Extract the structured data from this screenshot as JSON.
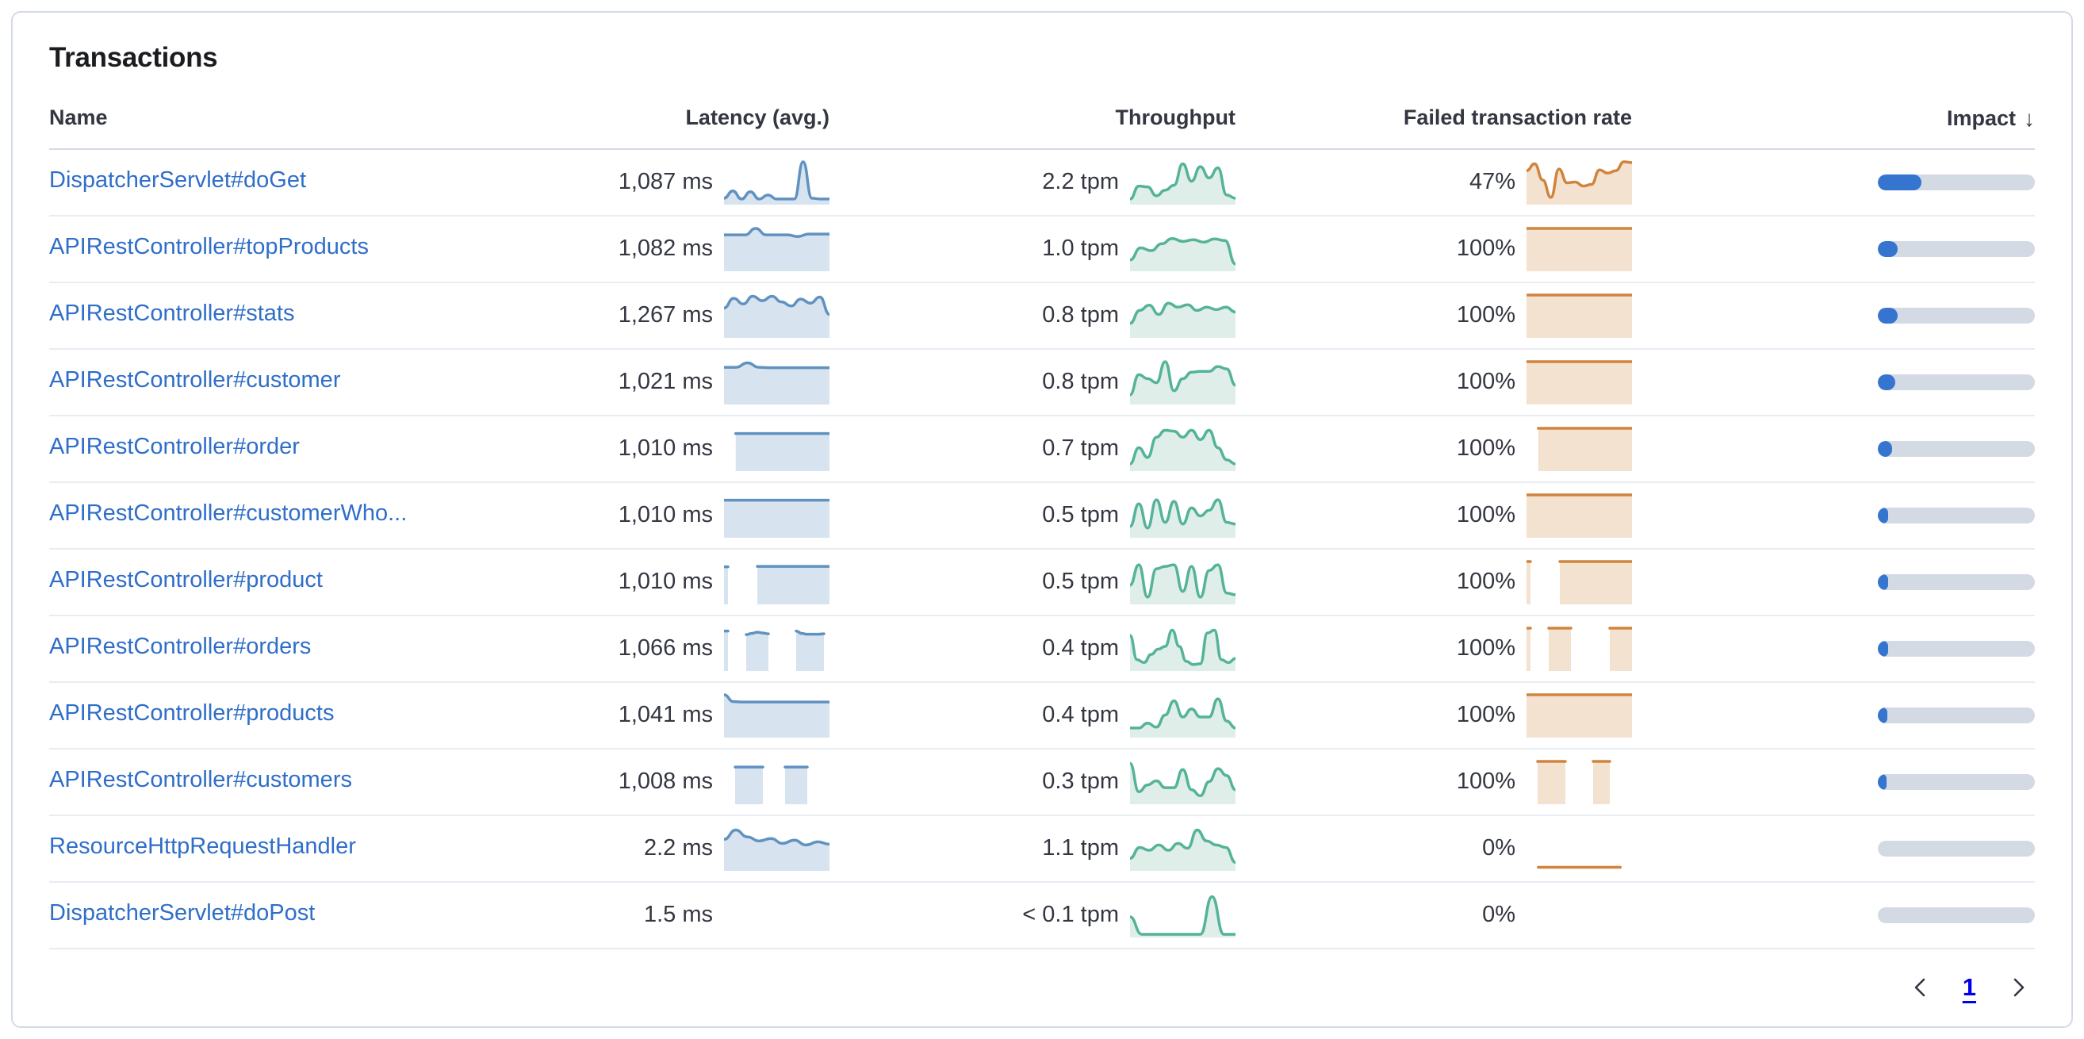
{
  "panel": {
    "title": "Transactions"
  },
  "colors": {
    "link": "#2f6ec9",
    "text": "#343741",
    "latency_line": "#6092c0",
    "latency_fill": "#d8e3f0",
    "throughput_line": "#54b399",
    "throughput_fill": "#dfeee8",
    "failed_line": "#d0843e",
    "failed_fill": "#f4e2d0",
    "impact_fill": "#3575d0",
    "impact_track": "#d4dae4"
  },
  "table": {
    "headers": {
      "name": "Name",
      "latency": "Latency (avg.)",
      "throughput": "Throughput",
      "failed": "Failed transaction rate",
      "impact": "Impact",
      "sort_arrow": "↓"
    },
    "rows": [
      {
        "name": "DispatcherServlet#doGet",
        "latency": "1,087 ms",
        "throughput": "2.2 tpm",
        "failed": "47%",
        "impact_pct": 28,
        "latency_spark": [
          0.1,
          0.28,
          0.08,
          0.26,
          0.08,
          0.18,
          0.08,
          0.08,
          0.08,
          1.0,
          0.1,
          0.08,
          0.08
        ],
        "throughput_spark": [
          0.08,
          0.4,
          0.38,
          0.16,
          0.3,
          0.42,
          0.95,
          0.52,
          0.88,
          0.6,
          0.85,
          0.18,
          0.1
        ],
        "failed_spark": [
          0.78,
          0.95,
          0.55,
          0.12,
          0.82,
          0.48,
          0.5,
          0.4,
          0.44,
          0.8,
          0.72,
          0.78,
          1.0,
          0.98
        ]
      },
      {
        "name": "APIRestController#topProducts",
        "latency": "1,082 ms",
        "throughput": "1.0 tpm",
        "failed": "100%",
        "impact_pct": 12.5,
        "latency_spark": [
          0.84,
          0.84,
          0.84,
          1.0,
          0.84,
          0.84,
          0.84,
          0.8,
          0.86,
          0.86,
          0.86
        ],
        "throughput_spark": [
          0.22,
          0.52,
          0.45,
          0.62,
          0.75,
          0.68,
          0.72,
          0.66,
          0.74,
          0.7,
          0.12
        ],
        "failed_spark": [
          1,
          1,
          1,
          1,
          1,
          1,
          1,
          1,
          1,
          1
        ]
      },
      {
        "name": "APIRestController#stats",
        "latency": "1,267 ms",
        "throughput": "0.8 tpm",
        "failed": "100%",
        "impact_pct": 12.5,
        "latency_spark": [
          0.68,
          0.92,
          0.78,
          0.97,
          0.86,
          0.97,
          0.83,
          0.73,
          0.9,
          0.8,
          0.95,
          0.52
        ],
        "throughput_spark": [
          0.3,
          0.62,
          0.75,
          0.52,
          0.8,
          0.7,
          0.76,
          0.62,
          0.7,
          0.64,
          0.7,
          0.58
        ],
        "failed_spark": [
          1,
          1,
          1,
          1,
          1,
          1,
          1,
          1,
          1,
          1
        ]
      },
      {
        "name": "APIRestController#customer",
        "latency": "1,021 ms",
        "throughput": "0.8 tpm",
        "failed": "100%",
        "impact_pct": 11,
        "latency_spark": [
          0.86,
          0.86,
          0.97,
          0.86,
          0.85,
          0.85,
          0.85,
          0.85,
          0.85,
          0.85
        ],
        "throughput_spark": [
          0.18,
          0.68,
          0.58,
          0.48,
          1.0,
          0.28,
          0.58,
          0.74,
          0.76,
          0.76,
          0.88,
          0.82,
          0.42
        ],
        "failed_spark": [
          1,
          1,
          1,
          1,
          1,
          1,
          1,
          1,
          1,
          1
        ]
      },
      {
        "name": "APIRestController#order",
        "latency": "1,010 ms",
        "throughput": "0.7 tpm",
        "failed": "100%",
        "impact_pct": 9,
        "latency_spark": [
          null,
          0.87,
          0.87,
          0.87,
          0.87,
          0.87,
          0.87,
          0.87,
          0.87,
          0.87
        ],
        "throughput_spark": [
          0.12,
          0.52,
          0.28,
          0.78,
          0.95,
          0.93,
          0.78,
          0.95,
          0.72,
          0.95,
          0.52,
          0.22,
          0.12
        ],
        "failed_spark": [
          null,
          1,
          1,
          1,
          1,
          1,
          1,
          1,
          1,
          1
        ]
      },
      {
        "name": "APIRestController#customerWho...",
        "latency": "1,010 ms",
        "throughput": "0.5 tpm",
        "failed": "100%",
        "impact_pct": 6.5,
        "latency_spark": [
          0.87,
          0.87,
          0.87,
          0.87,
          0.87,
          0.87,
          0.87,
          0.87,
          0.87,
          0.87
        ],
        "throughput_spark": [
          0.22,
          0.78,
          0.18,
          0.88,
          0.32,
          0.84,
          0.28,
          0.68,
          0.48,
          0.62,
          0.88,
          0.32,
          0.28
        ],
        "failed_spark": [
          1,
          1,
          1,
          1,
          1,
          1,
          1,
          1,
          1,
          1
        ]
      },
      {
        "name": "APIRestController#product",
        "latency": "1,010 ms",
        "throughput": "0.5 tpm",
        "failed": "100%",
        "impact_pct": 6.5,
        "latency_spark": [
          0.87,
          null,
          null,
          null,
          null,
          null,
          0.88,
          0.88,
          0.88,
          0.88,
          0.88,
          0.88,
          0.88,
          0.88,
          0.88,
          0.88,
          0.88,
          0.88,
          0.88,
          0.88
        ],
        "throughput_spark": [
          0.42,
          0.92,
          0.12,
          0.82,
          0.88,
          0.92,
          0.26,
          0.88,
          0.12,
          0.78,
          0.92,
          0.22,
          0.18
        ],
        "failed_spark": [
          1,
          null,
          null,
          null,
          null,
          null,
          1,
          1,
          1,
          1,
          1,
          1,
          1,
          1,
          1,
          1,
          1,
          1,
          1,
          1
        ]
      },
      {
        "name": "APIRestController#orders",
        "latency": "1,066 ms",
        "throughput": "0.4 tpm",
        "failed": "100%",
        "impact_pct": 6.5,
        "latency_spark": [
          0.93,
          null,
          null,
          null,
          0.84,
          0.87,
          0.9,
          0.88,
          0.86,
          null,
          null,
          null,
          null,
          0.93,
          0.87,
          0.85,
          0.85,
          0.85,
          0.86,
          null
        ],
        "throughput_spark": [
          0.82,
          0.22,
          0.15,
          0.35,
          0.48,
          0.55,
          0.95,
          0.55,
          0.18,
          0.1,
          0.12,
          0.88,
          0.95,
          0.22,
          0.15,
          0.25
        ],
        "failed_spark": [
          1,
          null,
          null,
          null,
          1,
          1,
          1,
          1,
          1,
          null,
          null,
          null,
          null,
          null,
          null,
          1,
          1,
          1,
          1,
          1
        ]
      },
      {
        "name": "APIRestController#products",
        "latency": "1,041 ms",
        "throughput": "0.4 tpm",
        "failed": "100%",
        "impact_pct": 6,
        "latency_spark": [
          1.0,
          0.83,
          0.82,
          0.82,
          0.82,
          0.82,
          0.82,
          0.82,
          0.82,
          0.82,
          0.82,
          0.82
        ],
        "throughput_spark": [
          0.18,
          0.18,
          0.3,
          0.2,
          0.5,
          0.85,
          0.45,
          0.65,
          0.45,
          0.45,
          0.9,
          0.35,
          0.18
        ],
        "failed_spark": [
          1,
          1,
          1,
          1,
          1,
          1,
          1,
          1,
          1,
          1
        ]
      },
      {
        "name": "APIRestController#customers",
        "latency": "1,008 ms",
        "throughput": "0.3 tpm",
        "failed": "100%",
        "impact_pct": 5.5,
        "latency_spark": [
          null,
          null,
          0.86,
          0.86,
          0.86,
          0.86,
          0.86,
          0.86,
          null,
          null,
          null,
          0.86,
          0.86,
          0.86,
          0.86,
          0.86,
          null,
          null,
          null,
          null
        ],
        "throughput_spark": [
          0.95,
          0.25,
          0.42,
          0.52,
          0.35,
          0.35,
          0.8,
          0.3,
          0.15,
          0.5,
          0.82,
          0.65,
          0.3
        ],
        "failed_spark": [
          null,
          null,
          1,
          1,
          1,
          1,
          1,
          1,
          null,
          null,
          null,
          null,
          1,
          1,
          1,
          1,
          null,
          null,
          null,
          null
        ]
      },
      {
        "name": "ResourceHttpRequestHandler",
        "latency": "2.2 ms",
        "throughput": "1.1 tpm",
        "failed": "0%",
        "impact_pct": 0,
        "latency_spark": [
          0.72,
          0.95,
          0.78,
          0.68,
          0.74,
          0.62,
          0.7,
          0.58,
          0.66,
          0.6
        ],
        "throughput_spark": [
          0.25,
          0.52,
          0.45,
          0.58,
          0.45,
          0.62,
          0.5,
          0.95,
          0.68,
          0.58,
          0.52,
          0.15
        ],
        "failed_spark": [
          null,
          0.03,
          0.03,
          0.03,
          0.03,
          0.03,
          0.03,
          0.03,
          0.03,
          null
        ],
        "failed_line_only": true
      },
      {
        "name": "DispatcherServlet#doPost",
        "latency": "1.5 ms",
        "throughput": "< 0.1 tpm",
        "failed": "0%",
        "impact_pct": 0,
        "latency_spark": null,
        "throughput_spark": [
          0.45,
          0.02,
          0.02,
          0.02,
          0.02,
          0.02,
          0.02,
          0.95,
          0.02,
          0.02
        ],
        "failed_spark": null
      }
    ]
  },
  "pagination": {
    "page": "1"
  }
}
